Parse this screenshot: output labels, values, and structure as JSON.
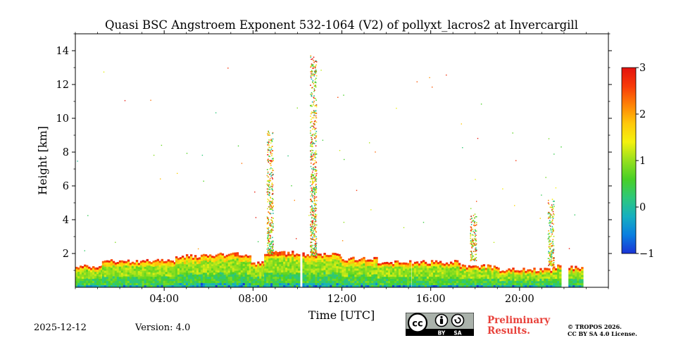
{
  "chart_data": {
    "type": "heatmap",
    "title": "Quasi BSC Angstroem Exponent 532-1064 (V2) of pollyxt_lacros2 at Invercargill",
    "xlabel": "Time [UTC]",
    "ylabel": "Height [km]",
    "xlim": [
      0,
      24
    ],
    "ylim": [
      0,
      15
    ],
    "xticks": [
      {
        "value": 4,
        "label": "04:00"
      },
      {
        "value": 8,
        "label": "08:00"
      },
      {
        "value": 12,
        "label": "12:00"
      },
      {
        "value": 16,
        "label": "16:00"
      },
      {
        "value": 20,
        "label": "20:00"
      }
    ],
    "yticks": [
      {
        "value": 2,
        "label": "2"
      },
      {
        "value": 4,
        "label": "4"
      },
      {
        "value": 6,
        "label": "6"
      },
      {
        "value": 8,
        "label": "8"
      },
      {
        "value": 10,
        "label": "10"
      },
      {
        "value": 12,
        "label": "12"
      },
      {
        "value": 14,
        "label": "14"
      }
    ],
    "colorbar": {
      "min": -1,
      "max": 3,
      "ticks": [
        {
          "value": -1,
          "label": "−1"
        },
        {
          "value": 0,
          "label": "0"
        },
        {
          "value": 1,
          "label": "1"
        },
        {
          "value": 2,
          "label": "2"
        },
        {
          "value": 3,
          "label": "3"
        }
      ],
      "colors": [
        "#1a33d6",
        "#0a7fe0",
        "#16b0c0",
        "#2ec87a",
        "#48d026",
        "#96e01e",
        "#f4f20e",
        "#ffc80a",
        "#ff8205",
        "#f83a08",
        "#e3120e"
      ]
    },
    "layer_segments": [
      {
        "start": 0.0,
        "end": 1.2,
        "top_km": 1.25
      },
      {
        "start": 1.2,
        "end": 3.0,
        "top_km": 1.55
      },
      {
        "start": 3.0,
        "end": 4.5,
        "top_km": 1.6
      },
      {
        "start": 4.5,
        "end": 6.3,
        "top_km": 1.85
      },
      {
        "start": 6.3,
        "end": 7.9,
        "top_km": 1.95
      },
      {
        "start": 7.9,
        "end": 8.5,
        "top_km": 1.45
      },
      {
        "start": 8.5,
        "end": 10.05,
        "top_km": 2.05
      },
      {
        "start": 10.22,
        "end": 11.9,
        "top_km": 1.95
      },
      {
        "start": 11.9,
        "end": 13.6,
        "top_km": 1.7
      },
      {
        "start": 13.6,
        "end": 15.05,
        "top_km": 1.5
      },
      {
        "start": 15.15,
        "end": 17.3,
        "top_km": 1.5
      },
      {
        "start": 17.3,
        "end": 19.0,
        "top_km": 1.25
      },
      {
        "start": 19.0,
        "end": 21.5,
        "top_km": 1.05
      },
      {
        "start": 21.5,
        "end": 21.85,
        "top_km": 1.25
      },
      {
        "start": 22.2,
        "end": 22.8,
        "top_km": 1.2
      }
    ],
    "plumes": [
      {
        "time": 8.75,
        "base_km": 2.0,
        "top_km": 9.3
      },
      {
        "time": 10.7,
        "base_km": 1.9,
        "top_km": 13.8
      },
      {
        "time": 17.9,
        "base_km": 1.6,
        "top_km": 4.4
      },
      {
        "time": 21.4,
        "base_km": 1.3,
        "top_km": 5.3
      }
    ]
  },
  "footer": {
    "date": "2025-12-12",
    "version": "Version: 4.0",
    "preliminary": [
      "Preliminary",
      "Results."
    ],
    "copyright": [
      "© TROPOS 2026.",
      "CC BY SA 4.0 License."
    ],
    "license_badge": {
      "cc": "cc",
      "by": "BY",
      "sa": "SA"
    }
  }
}
